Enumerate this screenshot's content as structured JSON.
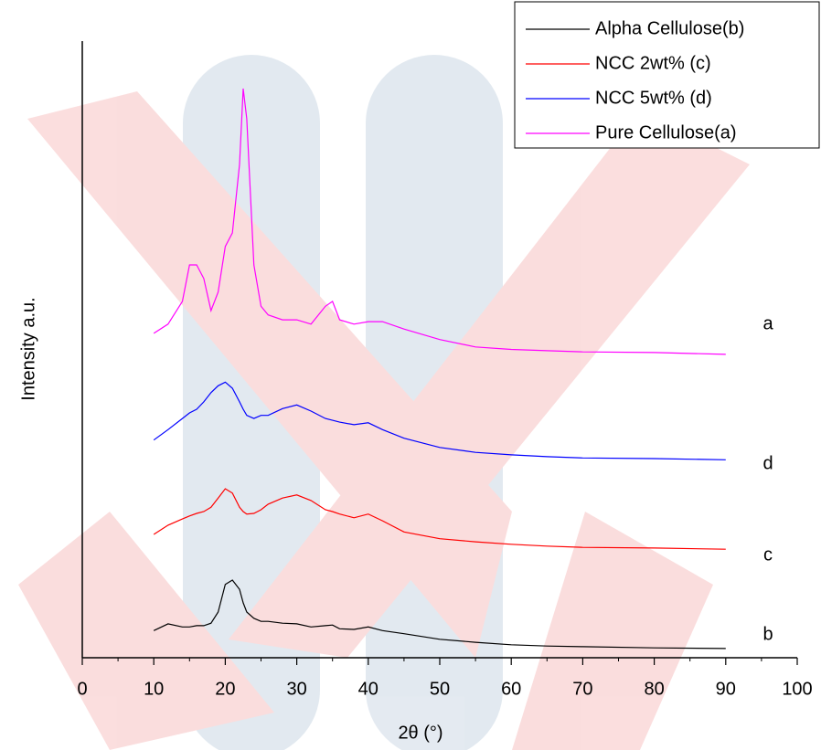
{
  "chart_data": {
    "type": "line",
    "x_label": "2θ (°)",
    "y_label": "Intensity a.u.",
    "x": [
      10,
      12,
      14,
      15,
      16,
      17,
      18,
      19,
      20,
      21,
      22,
      22.5,
      23,
      24,
      25,
      26,
      28,
      30,
      32,
      34,
      35,
      36,
      38,
      40,
      42,
      45,
      50,
      55,
      60,
      65,
      70,
      80,
      90
    ],
    "series": [
      {
        "name": "Alpha Cellulose(b)",
        "color": "#000000",
        "values": [
          4.4,
          5.5,
          5,
          5,
          5.2,
          5.2,
          5.6,
          7.4,
          11.9,
          12.6,
          11.1,
          8.9,
          7.4,
          6.4,
          5.9,
          5.9,
          5.6,
          5.5,
          5,
          5.2,
          5.3,
          4.7,
          4.6,
          5,
          4.4,
          3.9,
          3,
          2.5,
          2.1,
          1.9,
          1.8,
          1.6,
          1.5
        ]
      },
      {
        "name": "NCC 2wt% (c)",
        "color": "#ff0000",
        "values": [
          20,
          21.5,
          22.5,
          23,
          23.4,
          23.7,
          24.4,
          25.9,
          27.4,
          26.7,
          24.4,
          23.7,
          23.3,
          23.4,
          24,
          24.9,
          25.9,
          26.4,
          25.5,
          24,
          23.7,
          23.3,
          22.7,
          23.3,
          22.2,
          20.4,
          19.3,
          18.8,
          18.4,
          18.1,
          17.9,
          17.8,
          17.6
        ]
      },
      {
        "name": "NCC 5wt% (d)",
        "color": "#0000ff",
        "values": [
          35.3,
          37,
          38.8,
          39.7,
          40.3,
          41.5,
          43,
          44.1,
          44.7,
          43.7,
          41.5,
          40.3,
          39.3,
          38.8,
          39.3,
          39.3,
          40.4,
          41,
          40,
          38.8,
          38.5,
          38.2,
          37.8,
          38.1,
          37,
          35.6,
          34.1,
          33.3,
          32.9,
          32.6,
          32.4,
          32.3,
          32.1
        ]
      },
      {
        "name": "Pure Cellulose(a)",
        "color": "#ff00ff",
        "values": [
          52.6,
          54.1,
          57.8,
          63.7,
          63.7,
          61.5,
          56.3,
          59.3,
          66.7,
          68.9,
          80,
          92.3,
          87.4,
          63.7,
          57,
          55.6,
          54.8,
          54.8,
          54.1,
          57,
          57.8,
          54.8,
          54.1,
          54.5,
          54.5,
          53.3,
          51.6,
          50.4,
          50,
          49.8,
          49.6,
          49.5,
          49.2
        ]
      }
    ],
    "annotations": [
      "a",
      "d",
      "c",
      "b"
    ],
    "xlim": [
      0,
      100
    ],
    "xticks": [
      0,
      10,
      20,
      30,
      40,
      50,
      60,
      70,
      80,
      90,
      100
    ],
    "xminorticks": [
      5,
      15,
      25,
      35,
      45,
      55,
      65,
      75,
      85,
      95
    ],
    "ylim": [
      0,
      100
    ],
    "legend": "top-right"
  }
}
